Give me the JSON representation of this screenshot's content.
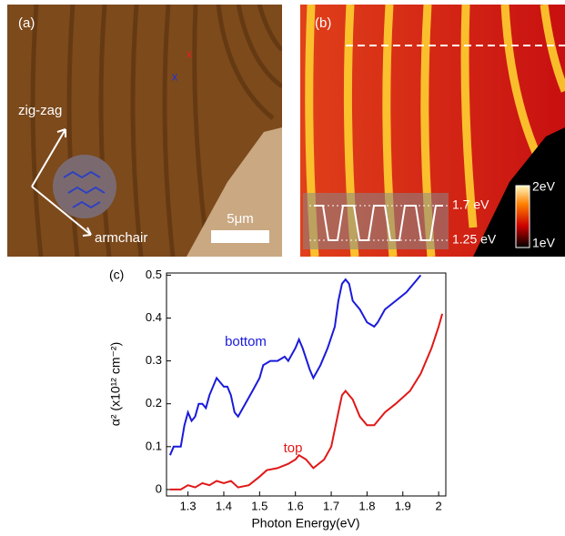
{
  "panels": {
    "a": {
      "label": "(a)",
      "zigzag": "zig-zag",
      "armchair": "armchair",
      "scale": "5μm",
      "marker_red": "x",
      "marker_blue": "x"
    },
    "b": {
      "label": "(b)",
      "high": "1.7 eV",
      "low": "1.25 eV",
      "cmax": "2eV",
      "cmin": "1eV"
    }
  },
  "chart_data": {
    "type": "line",
    "panel_label": "(c)",
    "xlabel": "Photon Energy(eV)",
    "ylabel": "α² (x10¹² cm⁻²)",
    "xlim": [
      1.24,
      2.02
    ],
    "ylim": [
      -0.015,
      0.505
    ],
    "xticks": [
      1.3,
      1.4,
      1.5,
      1.6,
      1.7,
      1.8,
      1.9,
      2
    ],
    "yticks": [
      0,
      0.1,
      0.2,
      0.3,
      0.4,
      0.5
    ],
    "annotations": [
      "bottom",
      "top"
    ],
    "series": [
      {
        "name": "bottom",
        "color": "#1a1adb",
        "x": [
          1.25,
          1.26,
          1.28,
          1.29,
          1.3,
          1.31,
          1.32,
          1.33,
          1.34,
          1.35,
          1.36,
          1.38,
          1.39,
          1.4,
          1.41,
          1.42,
          1.43,
          1.44,
          1.46,
          1.48,
          1.5,
          1.51,
          1.53,
          1.55,
          1.57,
          1.58,
          1.6,
          1.61,
          1.62,
          1.64,
          1.65,
          1.67,
          1.69,
          1.71,
          1.72,
          1.73,
          1.74,
          1.75,
          1.76,
          1.78,
          1.8,
          1.82,
          1.83,
          1.85,
          1.88,
          1.91,
          1.94,
          1.95
        ],
        "values": [
          0.08,
          0.1,
          0.1,
          0.15,
          0.18,
          0.16,
          0.17,
          0.2,
          0.2,
          0.19,
          0.22,
          0.26,
          0.25,
          0.24,
          0.24,
          0.22,
          0.18,
          0.17,
          0.2,
          0.23,
          0.26,
          0.29,
          0.3,
          0.3,
          0.31,
          0.3,
          0.33,
          0.35,
          0.33,
          0.28,
          0.26,
          0.29,
          0.33,
          0.38,
          0.44,
          0.48,
          0.49,
          0.48,
          0.44,
          0.42,
          0.39,
          0.38,
          0.39,
          0.42,
          0.44,
          0.46,
          0.49,
          0.5
        ]
      },
      {
        "name": "top",
        "color": "#e01818",
        "x": [
          1.25,
          1.28,
          1.3,
          1.32,
          1.34,
          1.36,
          1.38,
          1.4,
          1.42,
          1.44,
          1.47,
          1.5,
          1.52,
          1.55,
          1.58,
          1.6,
          1.61,
          1.63,
          1.65,
          1.68,
          1.7,
          1.72,
          1.73,
          1.74,
          1.76,
          1.78,
          1.8,
          1.82,
          1.85,
          1.88,
          1.92,
          1.95,
          1.98,
          2.0,
          2.01
        ],
        "values": [
          0,
          0,
          0.01,
          0.005,
          0.015,
          0.01,
          0.02,
          0.015,
          0.02,
          0.005,
          0.01,
          0.03,
          0.045,
          0.05,
          0.06,
          0.07,
          0.08,
          0.07,
          0.05,
          0.07,
          0.1,
          0.18,
          0.22,
          0.23,
          0.21,
          0.17,
          0.15,
          0.15,
          0.18,
          0.2,
          0.23,
          0.27,
          0.33,
          0.38,
          0.41
        ]
      }
    ]
  }
}
